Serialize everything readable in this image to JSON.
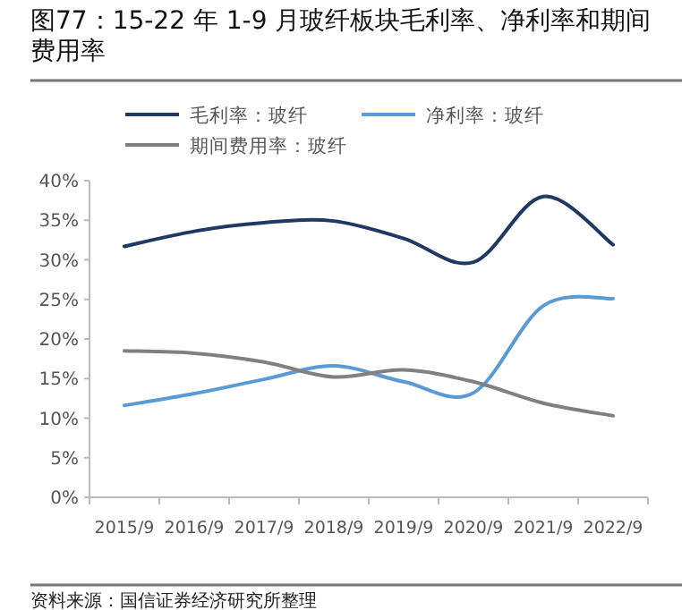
{
  "chart_data": {
    "type": "line",
    "title": "图77：15-22 年 1-9 月玻纤板块毛利率、净利率和期间费用率",
    "categories": [
      "2015/9",
      "2016/9",
      "2017/9",
      "2018/9",
      "2019/9",
      "2020/9",
      "2021/9",
      "2022/9"
    ],
    "series": [
      {
        "name": "毛利率：玻纤",
        "color": "#1f3864",
        "values": [
          31.7,
          33.6,
          34.7,
          34.9,
          32.7,
          29.7,
          38.0,
          31.9
        ]
      },
      {
        "name": "净利率：玻纤",
        "color": "#5b9bd5",
        "values": [
          11.6,
          13.1,
          14.9,
          16.6,
          14.6,
          13.2,
          24.2,
          25.1
        ]
      },
      {
        "name": "期间费用率：玻纤",
        "color": "#808080",
        "values": [
          18.5,
          18.2,
          17.1,
          15.2,
          16.1,
          14.6,
          11.9,
          10.3
        ]
      }
    ],
    "ylim": [
      0,
      40
    ],
    "yticks": [
      {
        "value": 0,
        "label": "0%"
      },
      {
        "value": 5,
        "label": "5%"
      },
      {
        "value": 10,
        "label": "10%"
      },
      {
        "value": 15,
        "label": "15%"
      },
      {
        "value": 20,
        "label": "20%"
      },
      {
        "value": 25,
        "label": "25%"
      },
      {
        "value": 30,
        "label": "30%"
      },
      {
        "value": 35,
        "label": "35%"
      },
      {
        "value": 40,
        "label": "40%"
      }
    ],
    "grid": false,
    "legend": "top",
    "marker": "none",
    "line_style": "solid",
    "annotations": [
      "资料来源：国信证券经济研究所整理"
    ]
  }
}
